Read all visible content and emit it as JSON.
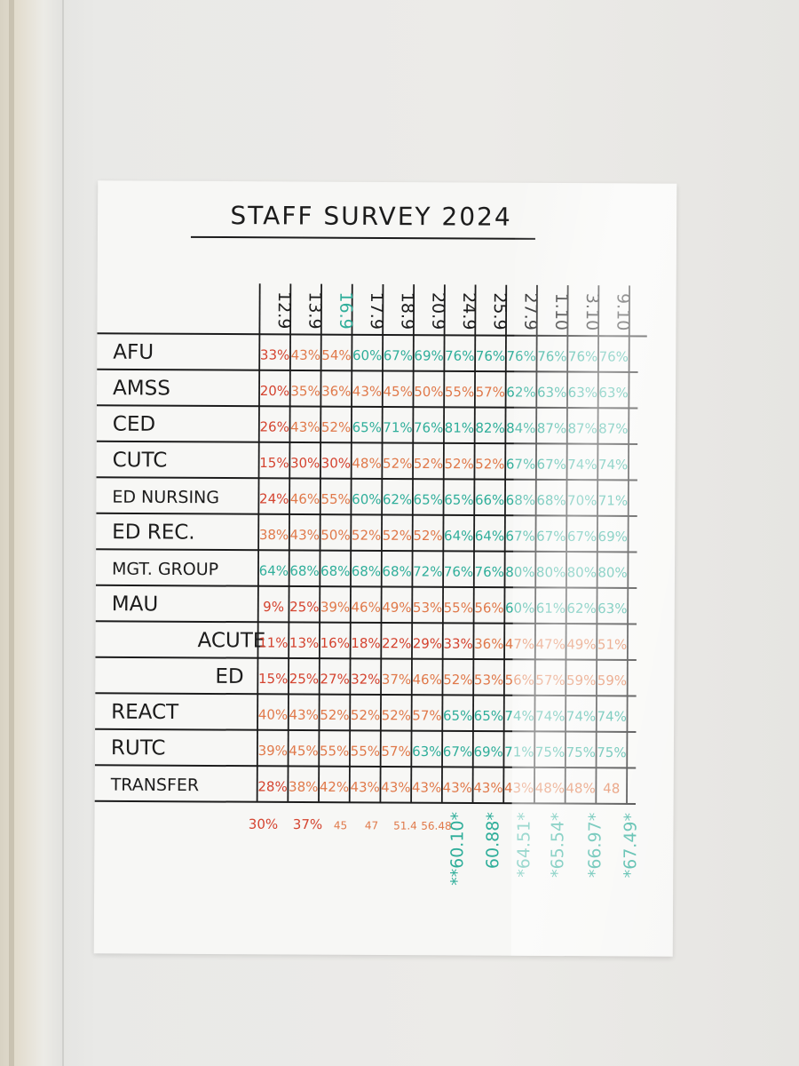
{
  "poster": {
    "title": "STAFF SURVEY 2024"
  },
  "dates": [
    "12.9",
    "13.9",
    "16.9",
    "17.9",
    "18.9",
    "20.9",
    "24.9",
    "25.9",
    "27.9",
    "1.10",
    "3.10",
    "9.10"
  ],
  "rows": [
    {
      "label": "AFU",
      "values": [
        "33%",
        "43%",
        "54%",
        "60%",
        "67%",
        "69%",
        "76%",
        "76%",
        "76%",
        "76%",
        "76%",
        "76%"
      ]
    },
    {
      "label": "AMSS",
      "values": [
        "20%",
        "35%",
        "36%",
        "43%",
        "45%",
        "50%",
        "55%",
        "57%",
        "62%",
        "63%",
        "63%",
        "63%"
      ]
    },
    {
      "label": "CED",
      "values": [
        "26%",
        "43%",
        "52%",
        "65%",
        "71%",
        "76%",
        "81%",
        "82%",
        "84%",
        "87%",
        "87%",
        "87%"
      ]
    },
    {
      "label": "CUTC",
      "values": [
        "15%",
        "30%",
        "30%",
        "48%",
        "52%",
        "52%",
        "52%",
        "52%",
        "67%",
        "67%",
        "74%",
        "74%"
      ]
    },
    {
      "label": "ED NURSING",
      "values": [
        "24%",
        "46%",
        "55%",
        "60%",
        "62%",
        "65%",
        "65%",
        "66%",
        "68%",
        "68%",
        "70%",
        "71%"
      ]
    },
    {
      "label": "ED REC.",
      "values": [
        "38%",
        "43%",
        "50%",
        "52%",
        "52%",
        "52%",
        "64%",
        "64%",
        "67%",
        "67%",
        "67%",
        "69%"
      ]
    },
    {
      "label": "MGT. GROUP",
      "values": [
        "64%",
        "68%",
        "68%",
        "68%",
        "68%",
        "72%",
        "76%",
        "76%",
        "80%",
        "80%",
        "80%",
        "80%"
      ]
    },
    {
      "label": "MAU",
      "values": [
        "9%",
        "25%",
        "39%",
        "46%",
        "49%",
        "53%",
        "55%",
        "56%",
        "60%",
        "61%",
        "62%",
        "63%"
      ]
    },
    {
      "label": "ACUTE",
      "values": [
        "11%",
        "13%",
        "16%",
        "18%",
        "22%",
        "29%",
        "33%",
        "36%",
        "47%",
        "47%",
        "49%",
        "51%"
      ]
    },
    {
      "label": "ED",
      "values": [
        "15%",
        "25%",
        "27%",
        "32%",
        "37%",
        "46%",
        "52%",
        "53%",
        "56%",
        "57%",
        "59%",
        "59%"
      ]
    },
    {
      "label": "REACT",
      "values": [
        "40%",
        "43%",
        "52%",
        "52%",
        "52%",
        "57%",
        "65%",
        "65%",
        "74%",
        "74%",
        "74%",
        "74%"
      ]
    },
    {
      "label": "RUTC",
      "values": [
        "39%",
        "45%",
        "55%",
        "55%",
        "57%",
        "63%",
        "67%",
        "69%",
        "71%",
        "75%",
        "75%",
        "75%"
      ]
    },
    {
      "label": "TRANSFER",
      "values": [
        "28%",
        "38%",
        "42%",
        "43%",
        "43%",
        "43%",
        "43%",
        "43%",
        "43%",
        "48%",
        "48%",
        "48"
      ]
    }
  ],
  "totals_row": [
    "30%",
    "37%",
    "45",
    "47",
    "51.4",
    "56.48"
  ],
  "totals_vertical": [
    "**60.10*",
    "60.88*",
    "*64.51*",
    "*65.54*",
    "*66.97*",
    "*67.49*"
  ],
  "colors": {
    "red": "#d4432f",
    "orange": "#e0794a",
    "teal": "#2fae9a",
    "ink": "#1c1c1c",
    "sheet": "#f7f7f5"
  }
}
